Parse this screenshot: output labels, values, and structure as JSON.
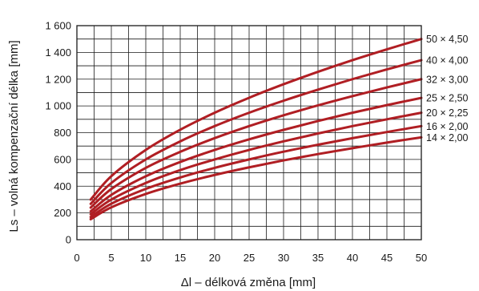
{
  "chart_data": {
    "type": "line",
    "title": "",
    "xlabel": "Δl – délková změna [mm]",
    "ylabel": "Ls – volná kompenzační délka [mm]",
    "xlim": [
      0,
      50
    ],
    "ylim": [
      0,
      1600
    ],
    "xticks": [
      0,
      5,
      10,
      15,
      20,
      25,
      30,
      35,
      40,
      45,
      50
    ],
    "yticks": [
      0,
      200,
      400,
      600,
      800,
      1000,
      1200,
      1400,
      1600
    ],
    "ytick_labels": [
      "0",
      "200",
      "400",
      "600",
      "800",
      "1 000",
      "1 200",
      "1 400",
      "1 600"
    ],
    "grid": true,
    "legend": "labels at right end of each line",
    "line_color": "#b01e23",
    "x": [
      2,
      5,
      10,
      15,
      20,
      25,
      30,
      35,
      40,
      45,
      50
    ],
    "series": [
      {
        "name": "50 × 4,50",
        "values": [
          300,
          475,
          671,
          822,
          949,
          1061,
          1162,
          1255,
          1342,
          1423,
          1500
        ]
      },
      {
        "name": "40 × 4,00",
        "values": [
          268,
          424,
          600,
          735,
          849,
          949,
          1039,
          1122,
          1200,
          1273,
          1342
        ]
      },
      {
        "name": "32 × 3,00",
        "values": [
          240,
          379,
          537,
          657,
          759,
          849,
          930,
          1004,
          1073,
          1138,
          1200
        ]
      },
      {
        "name": "25 × 2,50",
        "values": [
          212,
          335,
          474,
          581,
          671,
          750,
          821,
          887,
          949,
          1006,
          1060
        ]
      },
      {
        "name": "20 × 2,25",
        "values": [
          190,
          300,
          424,
          520,
          600,
          671,
          735,
          794,
          849,
          900,
          949
        ]
      },
      {
        "name": "16 × 2,00",
        "values": [
          170,
          269,
          380,
          465,
          537,
          600,
          658,
          710,
          759,
          805,
          849
        ]
      },
      {
        "name": "14 × 2,00",
        "values": [
          153,
          242,
          342,
          419,
          484,
          541,
          593,
          640,
          684,
          726,
          765
        ]
      }
    ]
  }
}
